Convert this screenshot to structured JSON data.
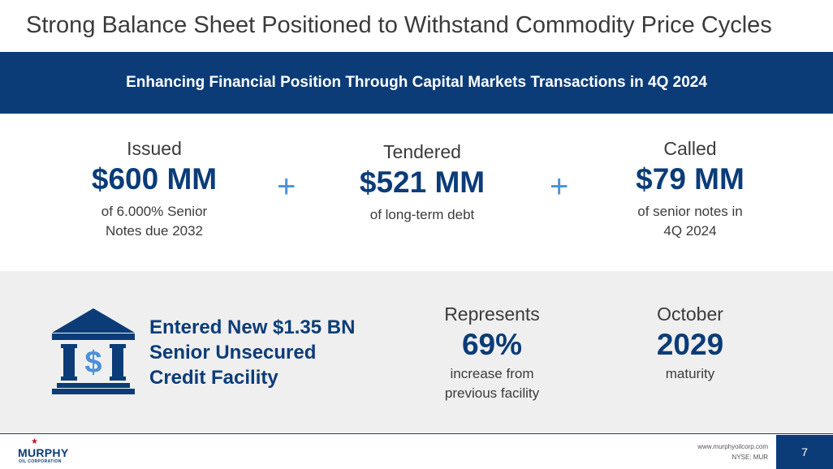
{
  "slide": {
    "title": "Strong Balance Sheet Positioned to Withstand Commodity Price Cycles",
    "banner": "Enhancing Financial Position Through Capital Markets Transactions in 4Q 2024",
    "page_number": "7"
  },
  "top_stats": [
    {
      "label": "Issued",
      "value": "$600 MM",
      "desc_line1": "of 6.000% Senior",
      "desc_line2": "Notes due 2032"
    },
    {
      "label": "Tendered",
      "value": "$521 MM",
      "desc_line1": "of long-term debt",
      "desc_line2": ""
    },
    {
      "label": "Called",
      "value": "$79 MM",
      "desc_line1": "of senior notes in",
      "desc_line2": "4Q 2024"
    }
  ],
  "plus_sign": "+",
  "facility": {
    "line1": "Entered New $1.35 BN",
    "line2": "Senior Unsecured",
    "line3": "Credit Facility",
    "icon": "bank-dollar-icon"
  },
  "bottom_stats": [
    {
      "label": "Represents",
      "value": "69%",
      "desc_line1": "increase from",
      "desc_line2": "previous facility"
    },
    {
      "label": "October",
      "value": "2029",
      "desc_line1": "maturity",
      "desc_line2": ""
    }
  ],
  "footer": {
    "logo_name": "MURPHY",
    "logo_sub": "OIL CORPORATION",
    "website": "www.murphyoilcorp.com",
    "ticker": "NYSE: MUR"
  },
  "colors": {
    "navy": "#0b3c78",
    "accent_blue": "#4a90d9",
    "gray_band": "#efefef",
    "logo_red": "#c8102e"
  }
}
